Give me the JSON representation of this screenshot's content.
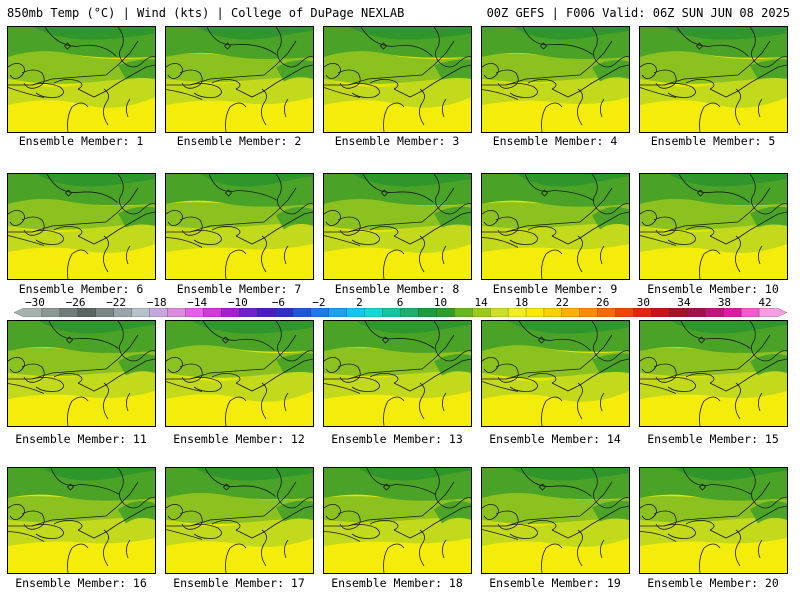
{
  "header": {
    "left": "850mb Temp (°C) | Wind (kts) | College of DuPage NEXLAB",
    "right": "00Z GEFS | F006 Valid: 06Z SUN JUN 08 2025"
  },
  "panels": [
    {
      "label": "Ensemble Member: 1"
    },
    {
      "label": "Ensemble Member: 2"
    },
    {
      "label": "Ensemble Member: 3"
    },
    {
      "label": "Ensemble Member: 4"
    },
    {
      "label": "Ensemble Member: 5"
    },
    {
      "label": "Ensemble Member: 6"
    },
    {
      "label": "Ensemble Member: 7"
    },
    {
      "label": "Ensemble Member: 8"
    },
    {
      "label": "Ensemble Member: 9"
    },
    {
      "label": "Ensemble Member: 10"
    },
    {
      "label": "Ensemble Member: 11"
    },
    {
      "label": "Ensemble Member: 12"
    },
    {
      "label": "Ensemble Member: 13"
    },
    {
      "label": "Ensemble Member: 14"
    },
    {
      "label": "Ensemble Member: 15"
    },
    {
      "label": "Ensemble Member: 16"
    },
    {
      "label": "Ensemble Member: 17"
    },
    {
      "label": "Ensemble Member: 18"
    },
    {
      "label": "Ensemble Member: 19"
    },
    {
      "label": "Ensemble Member: 20"
    }
  ],
  "colorbar": {
    "labels": [
      "−30",
      "−26",
      "−22",
      "−18",
      "−14",
      "−10",
      "−6",
      "−2",
      "2",
      "6",
      "10",
      "14",
      "18",
      "22",
      "26",
      "30",
      "34",
      "38",
      "42"
    ],
    "colors": [
      "#a8b3b0",
      "#8c9894",
      "#6f7e7a",
      "#586662",
      "#7a8584",
      "#9aa4aa",
      "#b5c1cd",
      "#c7a6dd",
      "#dc8bdd",
      "#e85ee8",
      "#d138d8",
      "#a51fcf",
      "#6f22c8",
      "#4a1ec0",
      "#2e31c6",
      "#1f57d9",
      "#1e7ae8",
      "#1da0ee",
      "#12c6ee",
      "#14d8d3",
      "#17c49f",
      "#1fae6e",
      "#1e9a3d",
      "#2f9d2a",
      "#66b822",
      "#9ccb1f",
      "#cfe02a",
      "#f1ee22",
      "#fbe905",
      "#fcd102",
      "#fbb003",
      "#f98c04",
      "#f56a08",
      "#f0440b",
      "#e2230f",
      "#c81418",
      "#a41226",
      "#a0104c",
      "#c0147a",
      "#dd1aa2",
      "#f25acd",
      "#f79de4"
    ]
  }
}
